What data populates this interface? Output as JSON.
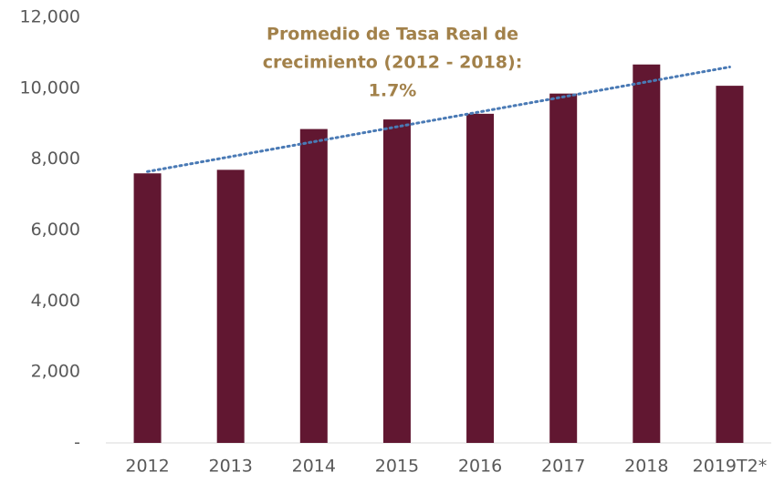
{
  "chart_data": {
    "type": "bar",
    "annotation": [
      "Promedio de Tasa Real de",
      "crecimiento (2012 - 2018):",
      "1.7%"
    ],
    "annotation_color": "#a2814a",
    "categories": [
      "2012",
      "2013",
      "2014",
      "2015",
      "2016",
      "2017",
      "2018",
      "2019T2*"
    ],
    "values": [
      7600,
      7700,
      8850,
      9120,
      9280,
      9850,
      10670,
      10070
    ],
    "color": "#611731",
    "trendline": {
      "values": [
        7650,
        10600
      ],
      "color": "#4a7ab5"
    },
    "ylim": [
      0,
      12000
    ],
    "yticks": [
      {
        "value": 0,
        "label": "-"
      },
      {
        "value": 2000,
        "label": "2,000"
      },
      {
        "value": 4000,
        "label": "4,000"
      },
      {
        "value": 6000,
        "label": "6,000"
      },
      {
        "value": 8000,
        "label": "8,000"
      },
      {
        "value": 10000,
        "label": "10,000"
      },
      {
        "value": 12000,
        "label": "12,000"
      }
    ],
    "grid": false
  }
}
